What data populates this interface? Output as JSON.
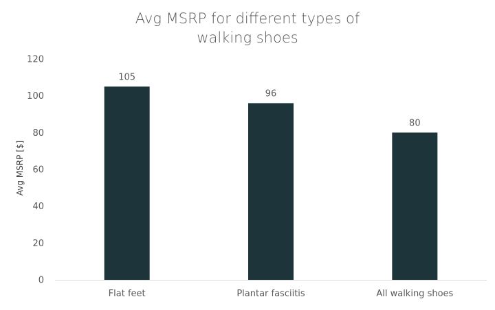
{
  "chart_data": {
    "type": "bar",
    "title_lines": [
      "Avg MSRP for different types of",
      "walking shoes"
    ],
    "xlabel": "",
    "ylabel": "Avg MSRP [$]",
    "categories": [
      "Flat feet",
      "Plantar fasciitis",
      "All walking shoes"
    ],
    "values": [
      105,
      96,
      80
    ],
    "data_labels": [
      "105",
      "96",
      "80"
    ],
    "ylim": [
      0,
      120
    ],
    "yticks": [
      0,
      20,
      40,
      60,
      80,
      100,
      120
    ],
    "grid": false,
    "legend": "none",
    "colors": {
      "bar": "#1c343a",
      "axis": "#d9d9d9",
      "text": "#595959"
    }
  }
}
